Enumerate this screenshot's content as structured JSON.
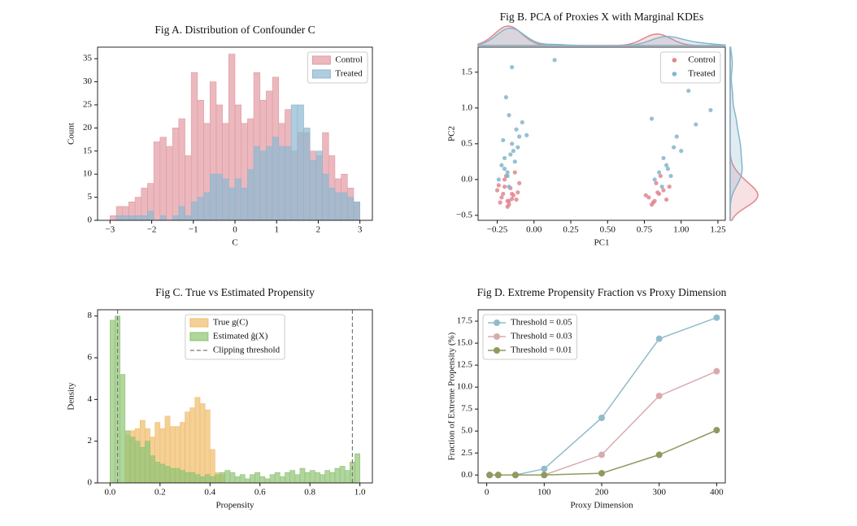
{
  "chart_data": [
    {
      "type": "histogram",
      "title": "Fig A. Distribution of Confounder C",
      "xlabel": "C",
      "ylabel": "Count",
      "bins": [
        -3,
        -2.85,
        -2.7,
        -2.55,
        -2.4,
        -2.25,
        -2.1,
        -1.95,
        -1.8,
        -1.65,
        -1.5,
        -1.35,
        -1.2,
        -1.05,
        -0.9,
        -0.75,
        -0.6,
        -0.45,
        -0.3,
        -0.15,
        0,
        0.15,
        0.3,
        0.45,
        0.6,
        0.75,
        0.9,
        1.05,
        1.2,
        1.35,
        1.5,
        1.65,
        1.8,
        1.95,
        2.1,
        2.25,
        2.4,
        2.55,
        2.7,
        2.85,
        3
      ],
      "series": [
        {
          "name": "Control",
          "color": "#e39aa2",
          "values": [
            1,
            3,
            3,
            4,
            5,
            7,
            8,
            17,
            18,
            16,
            20,
            22,
            14,
            32,
            26,
            21,
            30,
            25,
            21,
            36,
            25,
            21,
            22,
            32,
            26,
            28,
            31,
            21,
            24,
            15,
            19,
            19,
            15,
            14,
            19,
            14,
            9,
            10,
            7,
            4
          ]
        },
        {
          "name": "Treated",
          "color": "#8db8d0",
          "values": [
            0,
            1,
            1,
            1,
            1,
            1,
            2,
            0,
            1,
            0,
            1,
            3,
            1,
            4,
            5,
            6,
            10,
            10,
            9,
            7,
            9,
            7,
            11,
            16,
            15,
            16,
            18,
            16,
            16,
            25,
            25,
            20,
            13,
            15,
            10,
            7,
            6,
            6,
            5,
            4
          ]
        }
      ],
      "xlim": [
        -3.3,
        3.3
      ],
      "ylim": [
        0,
        37.5
      ],
      "xticks": [
        {
          "value": -3,
          "label": "−3"
        },
        {
          "value": -2,
          "label": "−2"
        },
        {
          "value": -1,
          "label": "−1"
        },
        0,
        1,
        2,
        3
      ],
      "yticks": [
        0,
        5,
        10,
        15,
        20,
        25,
        30,
        35
      ],
      "legend": "upper right"
    },
    {
      "type": "scatter",
      "title": "Fig B. PCA of Proxies X with Marginal KDEs",
      "xlabel": "PC1",
      "ylabel": "PC2",
      "marginal_kde": true,
      "series": [
        {
          "name": "Control",
          "color": "#e0868f",
          "x": [
            -0.22,
            -0.18,
            -0.15,
            -0.2,
            -0.12,
            -0.25,
            -0.17,
            -0.1,
            -0.19,
            -0.14,
            -0.23,
            -0.16,
            -0.21,
            -0.13,
            -0.18,
            -0.2,
            -0.15,
            -0.11,
            -0.24,
            -0.17,
            0.78,
            0.82,
            0.85,
            0.8,
            0.88,
            0.83,
            0.9,
            0.76,
            0.86,
            0.81,
            0.92,
            0.84
          ],
          "values": [
            -0.25,
            -0.3,
            -0.2,
            -0.1,
            -0.28,
            -0.15,
            -0.35,
            -0.05,
            0.05,
            -0.22,
            -0.32,
            -0.12,
            -0.2,
            0.1,
            -0.38,
            0,
            -0.27,
            -0.18,
            -0.08,
            -0.3,
            -0.25,
            -0.3,
            -0.2,
            -0.35,
            -0.15,
            -0.05,
            -0.28,
            -0.22,
            0.05,
            -0.32,
            -0.1,
            -0.18
          ]
        },
        {
          "name": "Treated",
          "color": "#84b5cc",
          "x": [
            -0.2,
            -0.15,
            -0.18,
            -0.12,
            -0.22,
            -0.17,
            -0.14,
            -0.1,
            -0.24,
            -0.19,
            -0.16,
            -0.13,
            -0.21,
            -0.08,
            -0.17,
            -0.11,
            -0.15,
            -0.2,
            -0.05,
            -0.18,
            0.14,
            0.85,
            0.9,
            0.88,
            0.93,
            0.95,
            1,
            1.05,
            1.2,
            0.82,
            0.87,
            0.91,
            0.97,
            0.8,
            1.1
          ],
          "values": [
            0.3,
            0.5,
            0.1,
            0.7,
            0.2,
            0.9,
            0.4,
            0.6,
            0,
            1.15,
            0.35,
            0.25,
            0.55,
            0.8,
            -0.1,
            0.45,
            1.57,
            0.15,
            0.62,
            0.05,
            1.67,
            0.1,
            0.2,
            0.3,
            0.05,
            0.45,
            0.4,
            1.24,
            0.97,
            0,
            -0.1,
            0.15,
            0.6,
            0.85,
            0.77
          ]
        }
      ],
      "xlim": [
        -0.38,
        1.3
      ],
      "ylim": [
        -0.57,
        1.85
      ],
      "xticks": [
        {
          "value": -0.25,
          "label": "−0.25"
        },
        {
          "value": 0,
          "label": "0.00"
        },
        0.25,
        {
          "value": 0.5,
          "label": "0.50"
        },
        0.75,
        {
          "value": 1,
          "label": "1.00"
        },
        1.25
      ],
      "yticks": [
        {
          "value": -0.5,
          "label": "−0.5"
        },
        {
          "value": 0,
          "label": "0.0"
        },
        0.5,
        {
          "value": 1,
          "label": "1.0"
        },
        1.5
      ],
      "legend": "upper right"
    },
    {
      "type": "histogram",
      "title": "Fig C. True vs Estimated Propensity",
      "xlabel": "Propensity",
      "ylabel": "Density",
      "bins": [
        0,
        0.02,
        0.04,
        0.06,
        0.08,
        0.1,
        0.12,
        0.14,
        0.16,
        0.18,
        0.2,
        0.22,
        0.24,
        0.26,
        0.28,
        0.3,
        0.32,
        0.34,
        0.36,
        0.38,
        0.4,
        0.42,
        0.44,
        0.46,
        0.48,
        0.5,
        0.52,
        0.54,
        0.56,
        0.58,
        0.6,
        0.62,
        0.64,
        0.66,
        0.68,
        0.7,
        0.72,
        0.74,
        0.76,
        0.78,
        0.8,
        0.82,
        0.84,
        0.86,
        0.88,
        0.9,
        0.92,
        0.94,
        0.96,
        0.98,
        1
      ],
      "series": [
        {
          "name": "True g(C)",
          "color": "#f0bc6a",
          "values": [
            0,
            0,
            0,
            2.3,
            2.5,
            2.6,
            3,
            2.6,
            2.2,
            2.9,
            2.6,
            3.2,
            2.7,
            2.7,
            2.9,
            3.4,
            3.6,
            4.1,
            3.8,
            3.5,
            1.6,
            0.5,
            0.4,
            0,
            0,
            0,
            0,
            0,
            0,
            0,
            0,
            0,
            0,
            0,
            0,
            0,
            0,
            0,
            0,
            0,
            0,
            0,
            0,
            0,
            0,
            0,
            0,
            0,
            0,
            0
          ]
        },
        {
          "name": "Estimated ĝ(X)",
          "color": "#8fc373",
          "values": [
            7.8,
            8,
            5.2,
            2.5,
            2.2,
            2,
            1.7,
            2,
            1.3,
            1,
            0.9,
            0.8,
            0.7,
            0.7,
            0.6,
            0.5,
            0.5,
            0.4,
            0.3,
            0.4,
            0.3,
            0.4,
            0.5,
            0.6,
            0.5,
            0.3,
            0.4,
            0.2,
            0.4,
            0.5,
            0.3,
            0.2,
            0.4,
            0.5,
            0.3,
            0.5,
            0.6,
            0.4,
            0.7,
            0.5,
            0.6,
            0.5,
            0.4,
            0.6,
            0.5,
            0.7,
            0.8,
            0.6,
            1,
            1.4
          ]
        }
      ],
      "reference_lines": {
        "name": "Clipping threshold",
        "color": "#777777",
        "values": [
          0.03,
          0.97
        ]
      },
      "xlim": [
        -0.05,
        1.05
      ],
      "ylim": [
        0,
        8.3
      ],
      "xticks": [
        {
          "value": 0,
          "label": "0.0"
        },
        0.2,
        0.4,
        0.6,
        0.8,
        {
          "value": 1,
          "label": "1.0"
        }
      ],
      "yticks": [
        0,
        2,
        4,
        6,
        8
      ],
      "legend": "upper center"
    },
    {
      "type": "line",
      "title": "Fig D. Extreme Propensity Fraction vs Proxy Dimension",
      "xlabel": "Proxy Dimension",
      "ylabel": "Fraction of Extreme Propensity (%)",
      "x": [
        5,
        20,
        50,
        100,
        200,
        300,
        400
      ],
      "series": [
        {
          "name": "Threshold = 0.05",
          "color": "#92bccb",
          "values": [
            0,
            0,
            0,
            0.7,
            6.5,
            15.5,
            17.9
          ]
        },
        {
          "name": "Threshold = 0.03",
          "color": "#d8aab0",
          "values": [
            0,
            0,
            0,
            0,
            2.3,
            9,
            11.8
          ]
        },
        {
          "name": "Threshold = 0.01",
          "color": "#8f9a60",
          "values": [
            0,
            0,
            0,
            0,
            0.2,
            2.3,
            5.1
          ]
        }
      ],
      "xlim": [
        -15,
        415
      ],
      "ylim": [
        -0.9,
        18.8
      ],
      "xticks": [
        0,
        100,
        200,
        300,
        400
      ],
      "yticks": [
        {
          "value": 0,
          "label": "0.0"
        },
        2.5,
        {
          "value": 5,
          "label": "5.0"
        },
        7.5,
        {
          "value": 10,
          "label": "10.0"
        },
        12.5,
        {
          "value": 15,
          "label": "15.0"
        },
        17.5
      ],
      "legend": "upper left"
    }
  ]
}
